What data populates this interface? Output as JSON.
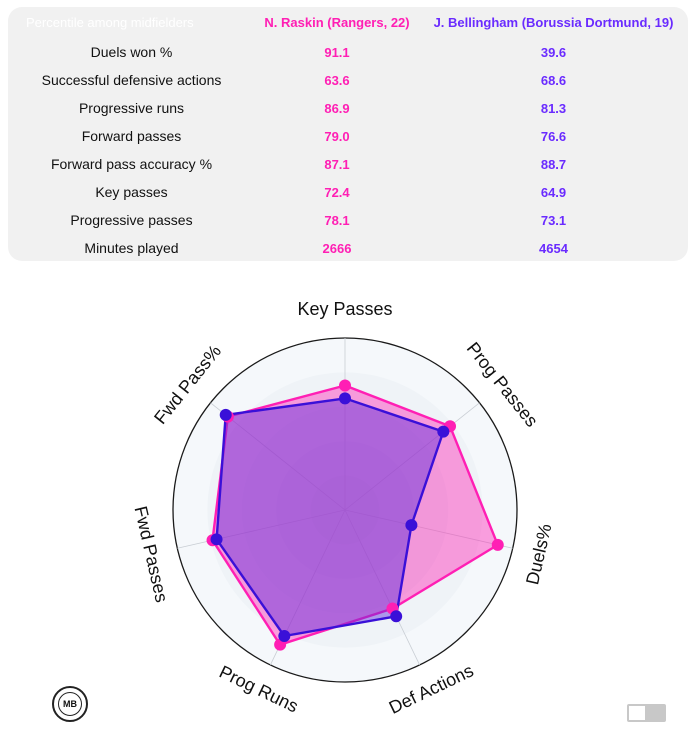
{
  "table": {
    "header": {
      "metric": "Percentile among midfielders",
      "player1": "N. Raskin (Rangers, 22)",
      "player2": "J. Bellingham (Borussia Dortmund, 19)"
    },
    "rows": [
      {
        "metric": "Duels won %",
        "v1": "91.1",
        "v2": "39.6"
      },
      {
        "metric": "Successful defensive actions",
        "v1": "63.6",
        "v2": "68.6"
      },
      {
        "metric": "Progressive runs",
        "v1": "86.9",
        "v2": "81.3"
      },
      {
        "metric": "Forward passes",
        "v1": "79.0",
        "v2": "76.6"
      },
      {
        "metric": "Forward pass accuracy %",
        "v1": "87.1",
        "v2": "88.7"
      },
      {
        "metric": "Key passes",
        "v1": "72.4",
        "v2": "64.9"
      },
      {
        "metric": "Progressive passes",
        "v1": "78.1",
        "v2": "73.1"
      },
      {
        "metric": "Minutes played",
        "v1": "2666",
        "v2": "4654"
      }
    ]
  },
  "chart_data": {
    "type": "radar",
    "axes": [
      "Key Passes",
      "Prog Passes",
      "Duels%",
      "Def Actions",
      "Prog Runs",
      "Fwd Passes",
      "Fwd Pass%"
    ],
    "range": [
      0,
      100
    ],
    "series": [
      {
        "name": "N. Raskin (Rangers, 22)",
        "color": "#ff1fb4",
        "values": [
          72.4,
          78.1,
          91.1,
          63.6,
          86.9,
          79.0,
          87.1
        ]
      },
      {
        "name": "J. Bellingham (Borussia Dortmund, 19)",
        "color": "#3a10d8",
        "values": [
          64.9,
          73.1,
          39.6,
          68.6,
          81.3,
          76.6,
          88.7
        ]
      }
    ]
  },
  "logo": {
    "text": "MB"
  }
}
